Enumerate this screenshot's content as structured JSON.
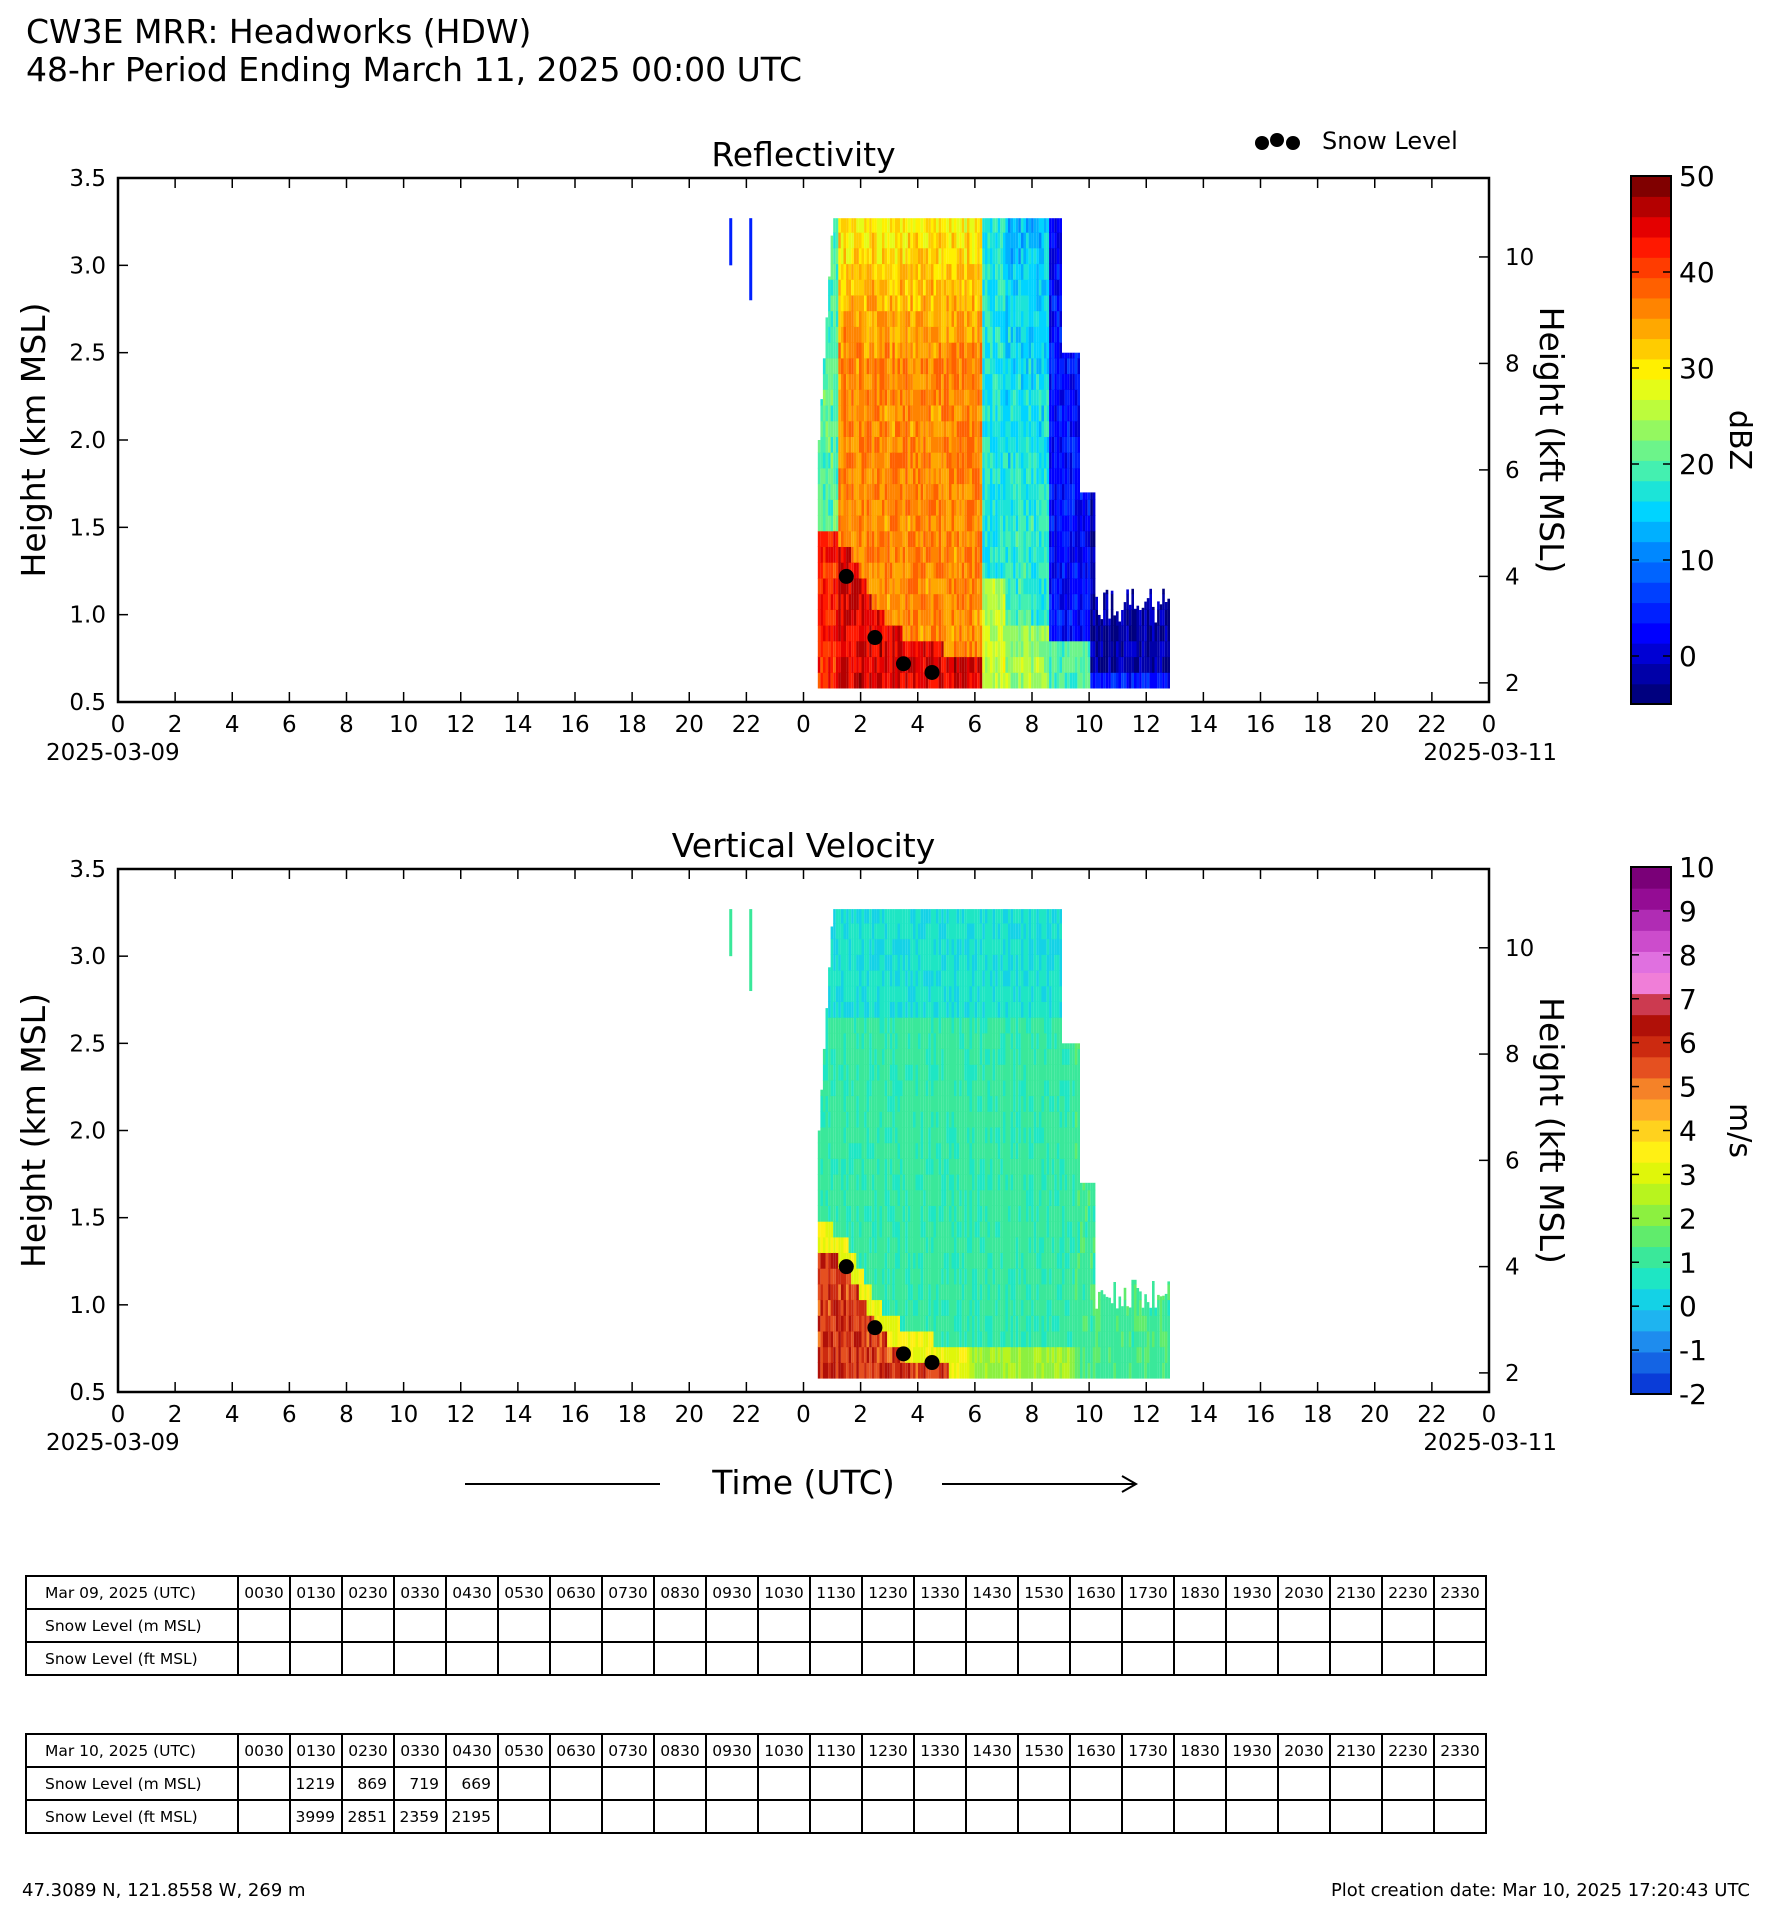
{
  "header": {
    "title_line1": "CW3E MRR: Headworks (HDW)",
    "title_line2": "48-hr Period Ending March 11, 2025 00:00 UTC"
  },
  "legend": {
    "snow_level_label": "Snow Level"
  },
  "colors": {
    "snow_marker": "#000000",
    "reflectivity_cmap": [
      "#00007f",
      "#0000a8",
      "#0000d4",
      "#0000ff",
      "#0020ff",
      "#0040ff",
      "#0064ff",
      "#0088ff",
      "#00b0ff",
      "#00d4ff",
      "#1ce4d8",
      "#44f0b0",
      "#6cf48a",
      "#94f860",
      "#bcfc3c",
      "#e4fc18",
      "#fff000",
      "#ffcc00",
      "#ffa800",
      "#ff8400",
      "#ff6000",
      "#ff3c00",
      "#ff1800",
      "#e40000",
      "#b40000",
      "#800000"
    ],
    "velocity_cmap": [
      "#0a3cd8",
      "#1464e4",
      "#1e8cee",
      "#1eb4f0",
      "#14d2e6",
      "#1ee6c4",
      "#3ae89a",
      "#60ec6c",
      "#8cf040",
      "#b8f41e",
      "#e0f60a",
      "#fff014",
      "#ffd21e",
      "#ffaa28",
      "#f58228",
      "#e55020",
      "#cc2a10",
      "#b01008",
      "#cc3a50",
      "#f07ed8",
      "#e070e0",
      "#cc4ccc",
      "#b02cb4",
      "#940c94",
      "#7a0078"
    ]
  },
  "chart_data": [
    {
      "type": "heatmap",
      "title": "Reflectivity",
      "x_tick_labels": [
        "0",
        "2",
        "4",
        "6",
        "8",
        "10",
        "12",
        "14",
        "16",
        "18",
        "20",
        "22",
        "0",
        "2",
        "4",
        "6",
        "8",
        "10",
        "12",
        "14",
        "16",
        "18",
        "20",
        "22",
        "0"
      ],
      "x_date_start": "2025-03-09",
      "x_date_end": "2025-03-11",
      "ylabel": "Height (km MSL)",
      "y_ticks": [
        "0.5",
        "1.0",
        "1.5",
        "2.0",
        "2.5",
        "3.0",
        "3.5"
      ],
      "ylim": [
        0.5,
        3.5
      ],
      "y2label": "Height (kft MSL)",
      "y2_ticks": [
        "2",
        "4",
        "6",
        "8",
        "10"
      ],
      "colorbar_label": "dBZ",
      "colorbar_ticks": [
        "50",
        "40",
        "30",
        "20",
        "10",
        "0"
      ],
      "colorbar_range": [
        -5,
        50
      ],
      "snow_level_points": [
        {
          "time": "2025-03-10 01:30",
          "height_km": 1.219
        },
        {
          "time": "2025-03-10 02:30",
          "height_km": 0.869
        },
        {
          "time": "2025-03-10 03:30",
          "height_km": 0.719
        },
        {
          "time": "2025-03-10 04:30",
          "height_km": 0.669
        }
      ]
    },
    {
      "type": "heatmap",
      "title": "Vertical Velocity",
      "x_tick_labels": [
        "0",
        "2",
        "4",
        "6",
        "8",
        "10",
        "12",
        "14",
        "16",
        "18",
        "20",
        "22",
        "0",
        "2",
        "4",
        "6",
        "8",
        "10",
        "12",
        "14",
        "16",
        "18",
        "20",
        "22",
        "0"
      ],
      "x_date_start": "2025-03-09",
      "x_date_end": "2025-03-11",
      "xlabel": "Time (UTC)",
      "ylabel": "Height (km MSL)",
      "y_ticks": [
        "0.5",
        "1.0",
        "1.5",
        "2.0",
        "2.5",
        "3.0",
        "3.5"
      ],
      "ylim": [
        0.5,
        3.5
      ],
      "y2label": "Height (kft MSL)",
      "y2_ticks": [
        "2",
        "4",
        "6",
        "8",
        "10"
      ],
      "colorbar_label": "m/s",
      "colorbar_ticks": [
        "10",
        "9",
        "8",
        "7",
        "6",
        "5",
        "4",
        "3",
        "2",
        "1",
        "0",
        "-1",
        "-2"
      ],
      "colorbar_range": [
        -2,
        10
      ],
      "snow_level_points": [
        {
          "time": "2025-03-10 01:30",
          "height_km": 1.219
        },
        {
          "time": "2025-03-10 02:30",
          "height_km": 0.869
        },
        {
          "time": "2025-03-10 03:30",
          "height_km": 0.719
        },
        {
          "time": "2025-03-10 04:30",
          "height_km": 0.669
        }
      ]
    }
  ],
  "tables": [
    {
      "date_label": "Mar 09, 2025 (UTC)",
      "times": [
        "0030",
        "0130",
        "0230",
        "0330",
        "0430",
        "0530",
        "0630",
        "0730",
        "0830",
        "0930",
        "1030",
        "1130",
        "1230",
        "1330",
        "1430",
        "1530",
        "1630",
        "1730",
        "1830",
        "1930",
        "2030",
        "2130",
        "2230",
        "2330"
      ],
      "row_m_label": "Snow Level (m MSL)",
      "row_ft_label": "Snow Level (ft MSL)",
      "m_values": [
        "",
        "",
        "",
        "",
        "",
        "",
        "",
        "",
        "",
        "",
        "",
        "",
        "",
        "",
        "",
        "",
        "",
        "",
        "",
        "",
        "",
        "",
        "",
        ""
      ],
      "ft_values": [
        "",
        "",
        "",
        "",
        "",
        "",
        "",
        "",
        "",
        "",
        "",
        "",
        "",
        "",
        "",
        "",
        "",
        "",
        "",
        "",
        "",
        "",
        "",
        ""
      ]
    },
    {
      "date_label": "Mar 10, 2025 (UTC)",
      "times": [
        "0030",
        "0130",
        "0230",
        "0330",
        "0430",
        "0530",
        "0630",
        "0730",
        "0830",
        "0930",
        "1030",
        "1130",
        "1230",
        "1330",
        "1430",
        "1530",
        "1630",
        "1730",
        "1830",
        "1930",
        "2030",
        "2130",
        "2230",
        "2330"
      ],
      "row_m_label": "Snow Level (m MSL)",
      "row_ft_label": "Snow Level (ft MSL)",
      "m_values": [
        "",
        "1219",
        "869",
        "719",
        "669",
        "",
        "",
        "",
        "",
        "",
        "",
        "",
        "",
        "",
        "",
        "",
        "",
        "",
        "",
        "",
        "",
        "",
        "",
        ""
      ],
      "ft_values": [
        "",
        "3999",
        "2851",
        "2359",
        "2195",
        "",
        "",
        "",
        "",
        "",
        "",
        "",
        "",
        "",
        "",
        "",
        "",
        "",
        "",
        "",
        "",
        "",
        "",
        ""
      ]
    }
  ],
  "footer": {
    "location": "47.3089 N, 121.8558 W, 269 m",
    "creation_date": "Plot creation date: Mar 10, 2025 17:20:43 UTC"
  }
}
